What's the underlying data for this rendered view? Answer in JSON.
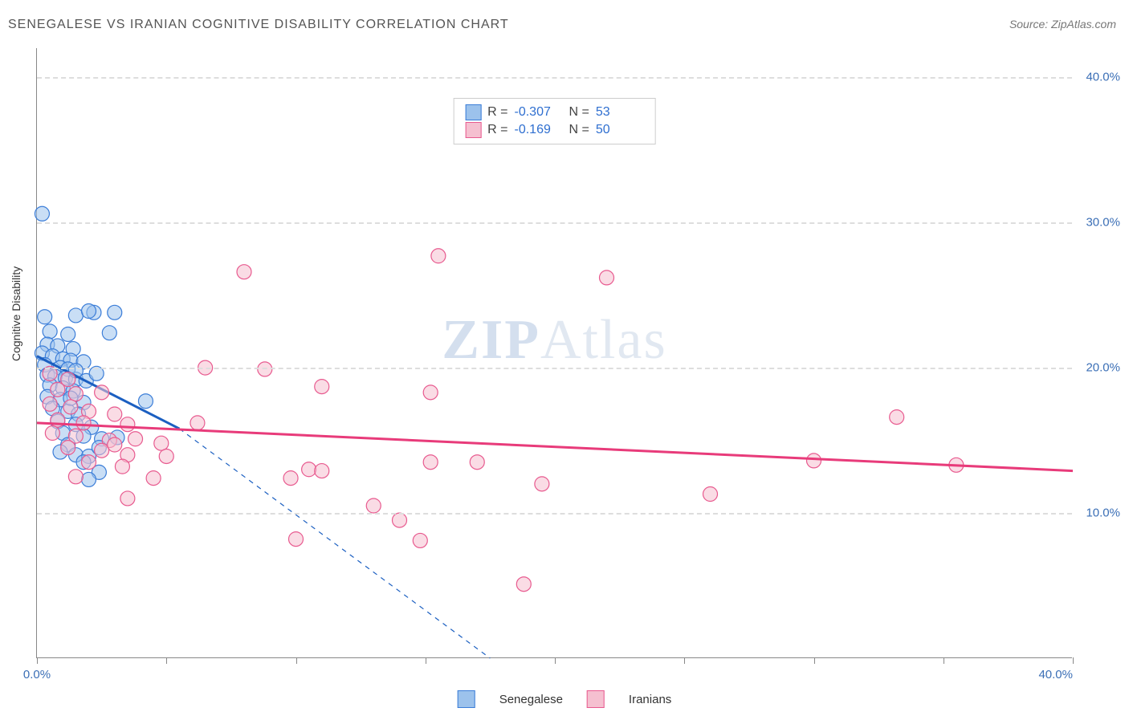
{
  "title": "SENEGALESE VS IRANIAN COGNITIVE DISABILITY CORRELATION CHART",
  "source": "Source: ZipAtlas.com",
  "ylabel": "Cognitive Disability",
  "watermark_zip": "ZIP",
  "watermark_atlas": "Atlas",
  "chart": {
    "type": "scatter-regression",
    "background_color": "#ffffff",
    "grid_color": "#dddddd",
    "axis_color": "#888888",
    "label_color": "#3b6fb6",
    "text_color": "#555555",
    "title_fontsize": 16,
    "label_fontsize": 15,
    "xlim": [
      0,
      40
    ],
    "ylim": [
      0,
      42
    ],
    "ytick_values": [
      10,
      20,
      30,
      40
    ],
    "ytick_labels": [
      "10.0%",
      "20.0%",
      "30.0%",
      "40.0%"
    ],
    "xtick_values": [
      0,
      5,
      10,
      15,
      20,
      25,
      30,
      35,
      40
    ],
    "xtick_labels_shown": {
      "0": "0.0%",
      "40": "40.0%"
    },
    "marker_radius": 9,
    "marker_stroke_width": 1.2,
    "marker_opacity": 0.55,
    "regression_line_width": 3,
    "series": [
      {
        "name": "Senegalese",
        "color_fill": "#9cc2ec",
        "color_stroke": "#3b7dd8",
        "line_color": "#1b5fc1",
        "legend_label": "Senegalese",
        "R": "-0.307",
        "N": "53",
        "regression": {
          "x1": 0,
          "y1": 20.8,
          "x2": 5.5,
          "y2": 15.8,
          "extrap_x2": 17.5,
          "extrap_y2": 0
        },
        "points": [
          [
            0.2,
            30.6
          ],
          [
            0.3,
            23.5
          ],
          [
            1.5,
            23.6
          ],
          [
            2.2,
            23.8
          ],
          [
            2.0,
            23.9
          ],
          [
            3.0,
            23.8
          ],
          [
            0.5,
            22.5
          ],
          [
            1.2,
            22.3
          ],
          [
            2.8,
            22.4
          ],
          [
            0.4,
            21.6
          ],
          [
            0.8,
            21.5
          ],
          [
            1.4,
            21.3
          ],
          [
            0.2,
            21.0
          ],
          [
            0.6,
            20.8
          ],
          [
            1.0,
            20.6
          ],
          [
            1.3,
            20.5
          ],
          [
            1.8,
            20.4
          ],
          [
            0.3,
            20.2
          ],
          [
            0.9,
            20.0
          ],
          [
            1.2,
            19.9
          ],
          [
            0.4,
            19.5
          ],
          [
            0.7,
            19.4
          ],
          [
            1.1,
            19.3
          ],
          [
            1.5,
            19.2
          ],
          [
            1.9,
            19.1
          ],
          [
            2.3,
            19.6
          ],
          [
            0.5,
            18.8
          ],
          [
            1.0,
            18.6
          ],
          [
            1.4,
            18.4
          ],
          [
            1.5,
            19.8
          ],
          [
            0.4,
            18.0
          ],
          [
            0.9,
            17.8
          ],
          [
            1.8,
            17.6
          ],
          [
            4.2,
            17.7
          ],
          [
            0.6,
            17.2
          ],
          [
            1.2,
            17.0
          ],
          [
            1.6,
            16.8
          ],
          [
            0.8,
            16.3
          ],
          [
            1.5,
            16.1
          ],
          [
            2.1,
            15.9
          ],
          [
            1.0,
            15.5
          ],
          [
            1.8,
            15.3
          ],
          [
            2.5,
            15.1
          ],
          [
            3.1,
            15.2
          ],
          [
            1.2,
            14.7
          ],
          [
            0.9,
            14.2
          ],
          [
            1.5,
            14.0
          ],
          [
            2.0,
            13.9
          ],
          [
            1.8,
            13.5
          ],
          [
            2.4,
            12.8
          ],
          [
            2.0,
            12.3
          ],
          [
            2.4,
            14.5
          ],
          [
            1.3,
            17.9
          ]
        ]
      },
      {
        "name": "Iranians",
        "color_fill": "#f5c0d0",
        "color_stroke": "#e85a8f",
        "line_color": "#e83b7a",
        "legend_label": "Iranians",
        "R": "-0.169",
        "N": "50",
        "regression": {
          "x1": 0,
          "y1": 16.2,
          "x2": 40,
          "y2": 12.9
        },
        "points": [
          [
            15.5,
            27.7
          ],
          [
            22.0,
            26.2
          ],
          [
            8.0,
            26.6
          ],
          [
            0.5,
            19.6
          ],
          [
            1.2,
            19.2
          ],
          [
            6.5,
            20.0
          ],
          [
            8.8,
            19.9
          ],
          [
            0.8,
            18.5
          ],
          [
            1.5,
            18.2
          ],
          [
            2.5,
            18.3
          ],
          [
            11.0,
            18.7
          ],
          [
            15.2,
            18.3
          ],
          [
            0.5,
            17.5
          ],
          [
            1.3,
            17.3
          ],
          [
            2.0,
            17.0
          ],
          [
            3.0,
            16.8
          ],
          [
            0.8,
            16.4
          ],
          [
            1.8,
            16.2
          ],
          [
            3.5,
            16.1
          ],
          [
            6.2,
            16.2
          ],
          [
            33.2,
            16.6
          ],
          [
            0.6,
            15.5
          ],
          [
            1.5,
            15.3
          ],
          [
            2.8,
            15.0
          ],
          [
            3.8,
            15.1
          ],
          [
            4.8,
            14.8
          ],
          [
            1.2,
            14.5
          ],
          [
            2.5,
            14.3
          ],
          [
            3.5,
            14.0
          ],
          [
            5.0,
            13.9
          ],
          [
            2.0,
            13.5
          ],
          [
            3.3,
            13.2
          ],
          [
            10.5,
            13.0
          ],
          [
            11.0,
            12.9
          ],
          [
            15.2,
            13.5
          ],
          [
            17.0,
            13.5
          ],
          [
            30.0,
            13.6
          ],
          [
            35.5,
            13.3
          ],
          [
            1.5,
            12.5
          ],
          [
            4.5,
            12.4
          ],
          [
            9.8,
            12.4
          ],
          [
            19.5,
            12.0
          ],
          [
            26.0,
            11.3
          ],
          [
            3.5,
            11.0
          ],
          [
            13.0,
            10.5
          ],
          [
            14.0,
            9.5
          ],
          [
            10.0,
            8.2
          ],
          [
            14.8,
            8.1
          ],
          [
            18.8,
            5.1
          ],
          [
            3.0,
            14.7
          ]
        ]
      }
    ]
  },
  "stats_box": {
    "rows": [
      {
        "swatch_fill": "#9cc2ec",
        "swatch_stroke": "#3b7dd8",
        "R_label": "R =",
        "R_val": "-0.307",
        "N_label": "N =",
        "N_val": "53"
      },
      {
        "swatch_fill": "#f5c0d0",
        "swatch_stroke": "#e85a8f",
        "R_label": "R =",
        "R_val": "-0.169",
        "N_label": "N =",
        "N_val": "50"
      }
    ]
  },
  "bottom_legend": [
    {
      "swatch_fill": "#9cc2ec",
      "swatch_stroke": "#3b7dd8",
      "label": "Senegalese"
    },
    {
      "swatch_fill": "#f5c0d0",
      "swatch_stroke": "#e85a8f",
      "label": "Iranians"
    }
  ]
}
